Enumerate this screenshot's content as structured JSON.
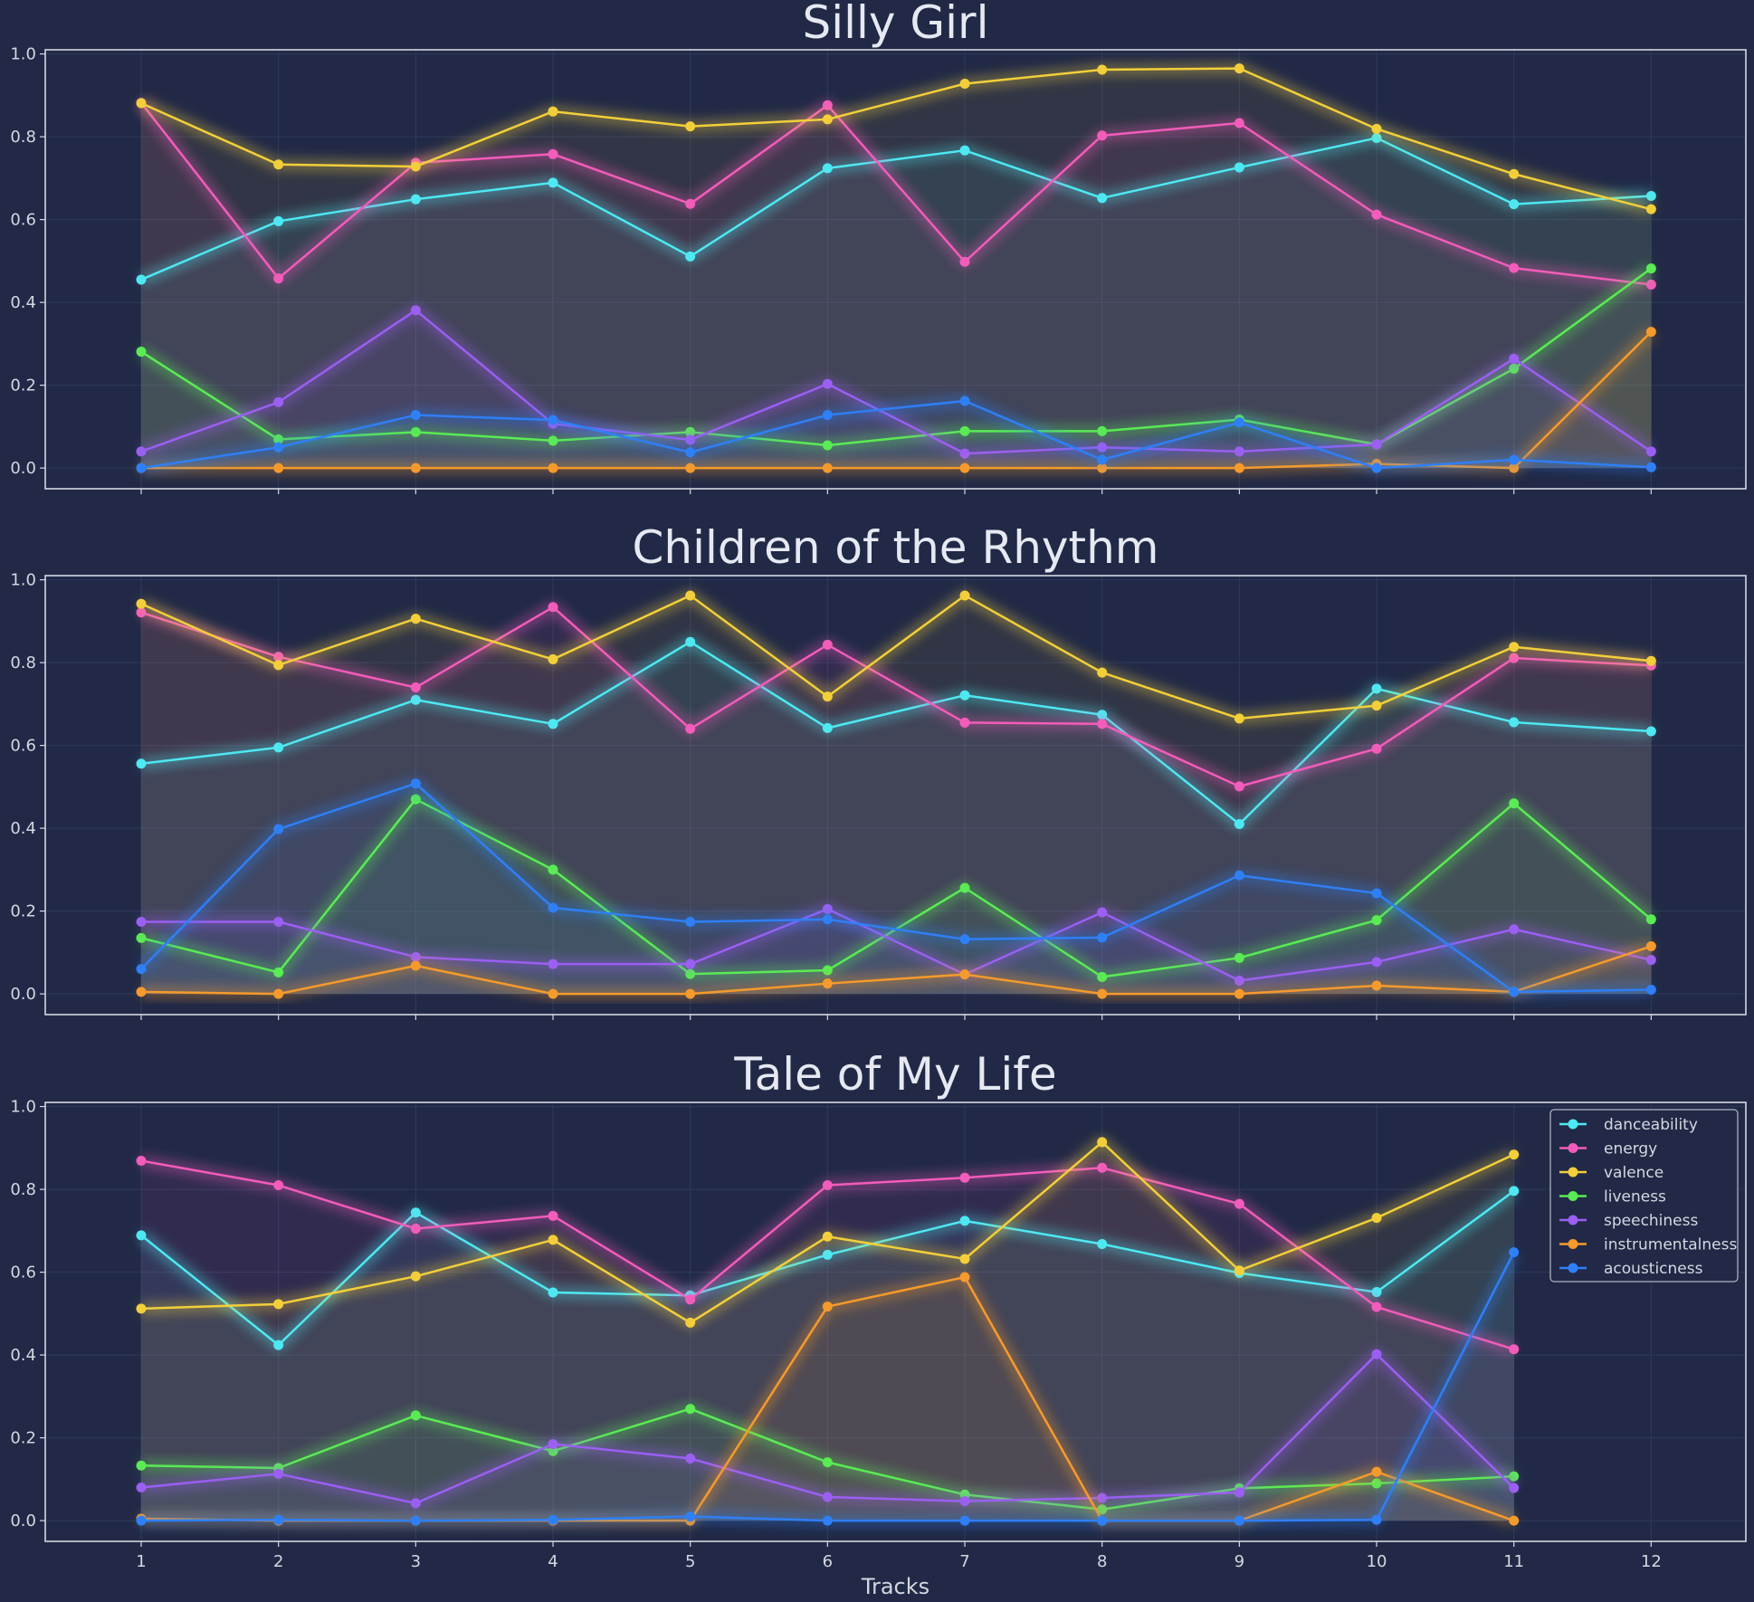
{
  "chart_data": {
    "type": "line",
    "xlabel": "Tracks",
    "ylim": [
      -0.05,
      1.01
    ],
    "yticks": [
      "0.0",
      "0.2",
      "0.4",
      "0.6",
      "0.8",
      "1.0"
    ],
    "grid": true,
    "legend_placement": "top-right (bottom panel)",
    "series_names": [
      "danceability",
      "energy",
      "valence",
      "liveness",
      "speechiness",
      "instrumentalness",
      "acousticness"
    ],
    "colors": {
      "danceability": "#4ee8f2",
      "energy": "#f25cba",
      "valence": "#f2cf3a",
      "liveness": "#5aeb55",
      "speechiness": "#9b5ff2",
      "instrumentalness": "#f59a2c",
      "acousticness": "#2f7ff5",
      "background": "#212946"
    },
    "panels": [
      {
        "title": "Silly Girl",
        "x": [
          1,
          2,
          3,
          4,
          5,
          6,
          7,
          8,
          9,
          10,
          11,
          12
        ],
        "series": [
          {
            "name": "danceability",
            "values": [
              0.455,
              0.596,
              0.649,
              0.689,
              0.511,
              0.724,
              0.767,
              0.652,
              0.726,
              0.797,
              0.637,
              0.657
            ]
          },
          {
            "name": "energy",
            "values": [
              0.882,
              0.458,
              0.737,
              0.758,
              0.638,
              0.876,
              0.498,
              0.803,
              0.833,
              0.612,
              0.483,
              0.443
            ]
          },
          {
            "name": "valence",
            "values": [
              0.881,
              0.733,
              0.728,
              0.861,
              0.825,
              0.842,
              0.928,
              0.962,
              0.965,
              0.819,
              0.71,
              0.625
            ]
          },
          {
            "name": "liveness",
            "values": [
              0.281,
              0.069,
              0.087,
              0.066,
              0.087,
              0.055,
              0.089,
              0.089,
              0.117,
              0.057,
              0.24,
              0.482
            ]
          },
          {
            "name": "speechiness",
            "values": [
              0.04,
              0.159,
              0.381,
              0.107,
              0.068,
              0.203,
              0.035,
              0.05,
              0.04,
              0.057,
              0.264,
              0.04
            ]
          },
          {
            "name": "instrumentalness",
            "values": [
              0.0,
              0.0,
              0.0,
              0.0,
              0.0,
              0.0,
              0.0,
              0.0,
              0.0,
              0.01,
              0.0,
              0.329
            ]
          },
          {
            "name": "acousticness",
            "values": [
              0.0,
              0.05,
              0.128,
              0.116,
              0.038,
              0.128,
              0.162,
              0.02,
              0.11,
              0.0,
              0.02,
              0.002
            ]
          }
        ]
      },
      {
        "title": "Children of the Rhythm",
        "x": [
          1,
          2,
          3,
          4,
          5,
          6,
          7,
          8,
          9,
          10,
          11,
          12
        ],
        "series": [
          {
            "name": "danceability",
            "values": [
              0.556,
              0.595,
              0.71,
              0.652,
              0.85,
              0.642,
              0.721,
              0.674,
              0.41,
              0.737,
              0.656,
              0.634
            ]
          },
          {
            "name": "energy",
            "values": [
              0.921,
              0.814,
              0.74,
              0.934,
              0.64,
              0.843,
              0.655,
              0.652,
              0.501,
              0.592,
              0.811,
              0.793
            ]
          },
          {
            "name": "valence",
            "values": [
              0.942,
              0.794,
              0.906,
              0.808,
              0.962,
              0.718,
              0.962,
              0.776,
              0.665,
              0.696,
              0.838,
              0.804
            ]
          },
          {
            "name": "liveness",
            "values": [
              0.135,
              0.052,
              0.47,
              0.3,
              0.048,
              0.057,
              0.256,
              0.041,
              0.087,
              0.178,
              0.46,
              0.18
            ]
          },
          {
            "name": "speechiness",
            "values": [
              0.174,
              0.174,
              0.089,
              0.072,
              0.072,
              0.205,
              0.047,
              0.197,
              0.032,
              0.077,
              0.156,
              0.082
            ]
          },
          {
            "name": "instrumentalness",
            "values": [
              0.005,
              0.0,
              0.068,
              0.0,
              0.0,
              0.025,
              0.047,
              0.0,
              0.0,
              0.02,
              0.005,
              0.115
            ]
          },
          {
            "name": "acousticness",
            "values": [
              0.06,
              0.398,
              0.508,
              0.208,
              0.174,
              0.18,
              0.132,
              0.136,
              0.286,
              0.243,
              0.005,
              0.01
            ]
          }
        ]
      },
      {
        "title": "Tale of My Life",
        "x": [
          1,
          2,
          3,
          4,
          5,
          6,
          7,
          8,
          9,
          10,
          11
        ],
        "series": [
          {
            "name": "danceability",
            "values": [
              0.689,
              0.424,
              0.744,
              0.551,
              0.544,
              0.642,
              0.724,
              0.668,
              0.598,
              0.552,
              0.796
            ]
          },
          {
            "name": "energy",
            "values": [
              0.869,
              0.81,
              0.705,
              0.736,
              0.534,
              0.81,
              0.828,
              0.852,
              0.765,
              0.516,
              0.414
            ]
          },
          {
            "name": "valence",
            "values": [
              0.512,
              0.523,
              0.59,
              0.678,
              0.478,
              0.686,
              0.632,
              0.914,
              0.604,
              0.731,
              0.884
            ]
          },
          {
            "name": "liveness",
            "values": [
              0.133,
              0.127,
              0.254,
              0.168,
              0.27,
              0.141,
              0.063,
              0.027,
              0.078,
              0.09,
              0.107
            ]
          },
          {
            "name": "speechiness",
            "values": [
              0.08,
              0.113,
              0.042,
              0.185,
              0.15,
              0.057,
              0.047,
              0.055,
              0.068,
              0.402,
              0.079
            ]
          },
          {
            "name": "instrumentalness",
            "values": [
              0.005,
              0.0,
              0.0,
              0.0,
              0.0,
              0.517,
              0.588,
              0.0,
              0.0,
              0.118,
              0.0
            ]
          },
          {
            "name": "acousticness",
            "values": [
              0.0,
              0.002,
              0.0,
              0.002,
              0.01,
              0.0,
              0.0,
              0.0,
              0.0,
              0.002,
              0.648
            ]
          }
        ]
      }
    ]
  }
}
